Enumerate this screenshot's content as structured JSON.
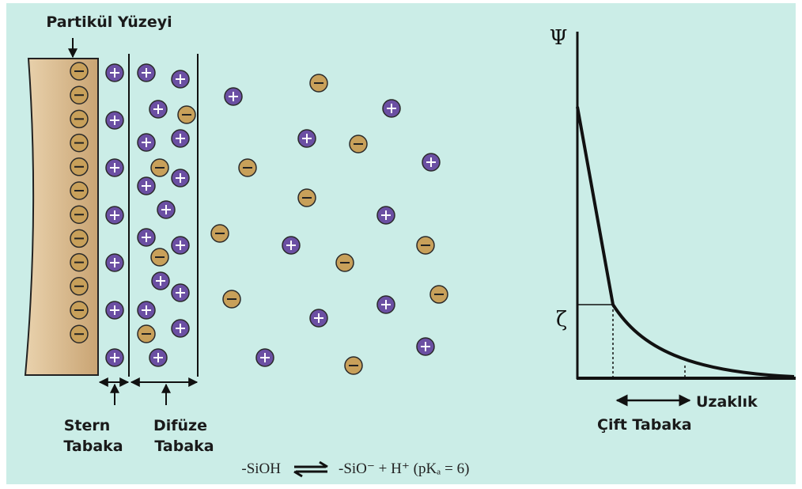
{
  "labels": {
    "surface": "Partikül Yüzeyi",
    "stern": [
      "Stern",
      "Tabaka"
    ],
    "diffuse": [
      "Difüze",
      "Tabaka"
    ]
  },
  "graph": {
    "y_axis": "Ψ",
    "zeta": "ζ",
    "x_axis": "Uzaklık",
    "double_layer": "Çift Tabaka"
  },
  "equation": {
    "left": "-SiOH",
    "right": "-SiO⁻ + H⁺ (pKₐ = 6)"
  }
}
